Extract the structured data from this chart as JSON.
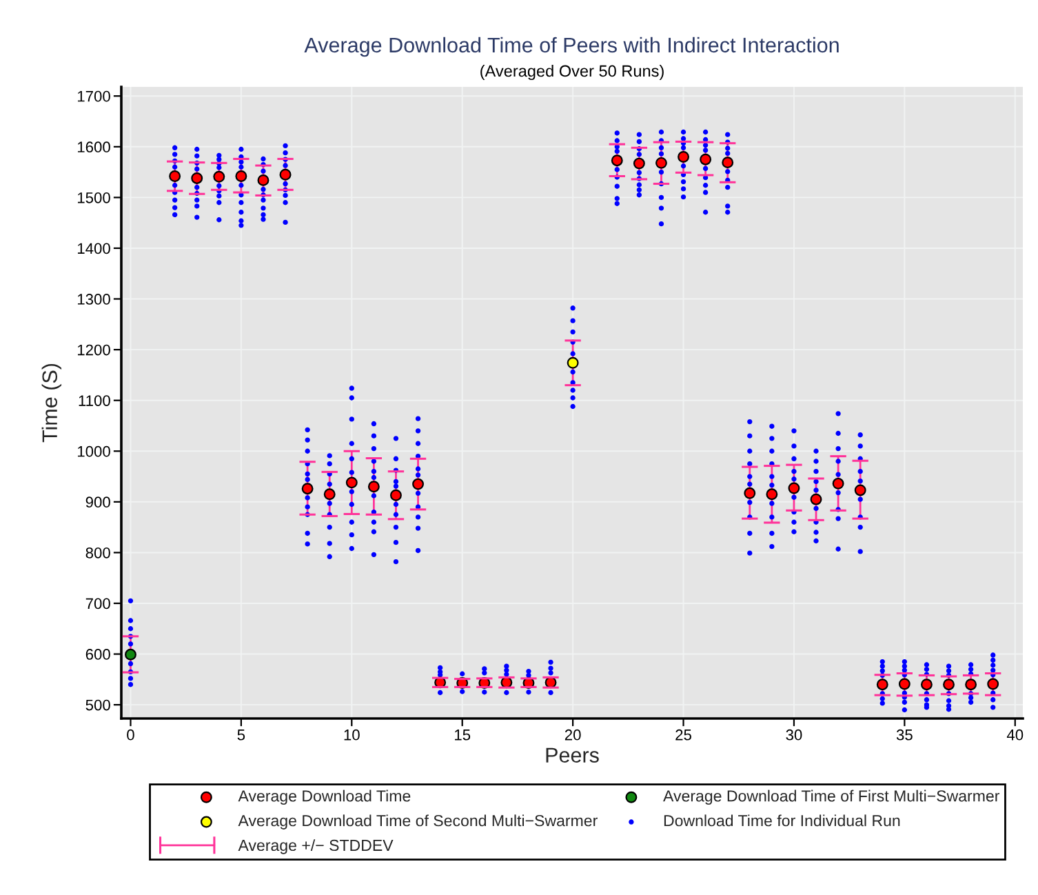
{
  "chart_data": {
    "type": "scatter",
    "title": "Average Download Time of Peers with Indirect Interaction",
    "subtitle": "(Averaged Over 50 Runs)",
    "xlabel": "Peers",
    "ylabel": "Time (S)",
    "xlim": [
      -0.42,
      40.35
    ],
    "ylim": [
      473,
      1718
    ],
    "xticks": [
      0,
      5,
      10,
      15,
      20,
      25,
      30,
      35,
      40
    ],
    "yticks": [
      500,
      600,
      700,
      800,
      900,
      1000,
      1100,
      1200,
      1300,
      1400,
      1500,
      1600,
      1700
    ],
    "grid": true,
    "legend": "bottom",
    "series": [
      {
        "name": "Average Download Time",
        "marker": "circle",
        "color": "#ff0000",
        "x": [
          2,
          3,
          4,
          5,
          6,
          7,
          8,
          9,
          10,
          11,
          12,
          13,
          14,
          15,
          16,
          17,
          18,
          19,
          22,
          23,
          24,
          25,
          26,
          27,
          28,
          29,
          30,
          31,
          32,
          33,
          34,
          35,
          36,
          37,
          38,
          39
        ],
        "values": [
          1542,
          1538,
          1541,
          1542,
          1534,
          1545,
          926,
          915,
          938,
          930,
          913,
          935,
          544,
          543,
          543,
          544,
          543,
          544,
          1573,
          1567,
          1568,
          1580,
          1575,
          1569,
          917,
          915,
          927,
          905,
          936,
          923,
          540,
          541,
          540,
          540,
          540,
          541
        ],
        "errors": [
          [
            1513,
            1571
          ],
          [
            1507,
            1569
          ],
          [
            1515,
            1568
          ],
          [
            1510,
            1576
          ],
          [
            1504,
            1563
          ],
          [
            1515,
            1576
          ],
          [
            875,
            979
          ],
          [
            872,
            959
          ],
          [
            876,
            1000
          ],
          [
            875,
            986
          ],
          [
            866,
            960
          ],
          [
            885,
            985
          ],
          [
            535,
            553
          ],
          [
            535,
            551
          ],
          [
            535,
            552
          ],
          [
            534,
            554
          ],
          [
            535,
            552
          ],
          [
            534,
            554
          ],
          [
            1542,
            1605
          ],
          [
            1536,
            1598
          ],
          [
            1527,
            1609
          ],
          [
            1549,
            1610
          ],
          [
            1544,
            1609
          ],
          [
            1530,
            1607
          ],
          [
            867,
            969
          ],
          [
            859,
            971
          ],
          [
            883,
            973
          ],
          [
            864,
            946
          ],
          [
            883,
            990
          ],
          [
            867,
            981
          ],
          [
            519,
            559
          ],
          [
            518,
            562
          ],
          [
            519,
            558
          ],
          [
            521,
            556
          ],
          [
            522,
            558
          ],
          [
            519,
            562
          ]
        ]
      },
      {
        "name": "Average Download Time of First Multi−Swarmer",
        "marker": "circle",
        "color": "#118811",
        "x": [
          0
        ],
        "values": [
          599
        ],
        "errors": [
          [
            564,
            635
          ]
        ]
      },
      {
        "name": "Average Download Time of Second Multi−Swarmer",
        "marker": "circle",
        "color": "#ffff00",
        "x": [
          20
        ],
        "values": [
          1174
        ],
        "errors": [
          [
            1130,
            1218
          ]
        ]
      },
      {
        "name": "Download Time for Individual Run",
        "marker": "circle",
        "color": "#0000ff",
        "x": [
          0,
          0,
          0,
          0,
          0,
          0,
          0,
          0,
          0,
          2,
          2,
          2,
          2,
          2,
          2,
          2,
          2,
          2,
          3,
          3,
          3,
          3,
          3,
          3,
          3,
          3,
          3,
          4,
          4,
          4,
          4,
          4,
          4,
          4,
          4,
          4,
          5,
          5,
          5,
          5,
          5,
          5,
          5,
          5,
          5,
          5,
          6,
          6,
          6,
          6,
          6,
          6,
          6,
          6,
          6,
          7,
          7,
          7,
          7,
          7,
          7,
          7,
          7,
          7,
          8,
          8,
          8,
          8,
          8,
          8,
          8,
          8,
          8,
          8,
          8,
          9,
          9,
          9,
          9,
          9,
          9,
          9,
          9,
          9,
          10,
          10,
          10,
          10,
          10,
          10,
          10,
          10,
          10,
          10,
          10,
          11,
          11,
          11,
          11,
          11,
          11,
          11,
          11,
          11,
          11,
          11,
          12,
          12,
          12,
          12,
          12,
          12,
          12,
          12,
          12,
          12,
          13,
          13,
          13,
          13,
          13,
          13,
          13,
          13,
          13,
          13,
          13,
          14,
          14,
          14,
          14,
          15,
          15,
          16,
          16,
          16,
          17,
          17,
          17,
          17,
          18,
          18,
          18,
          19,
          19,
          19,
          19,
          20,
          20,
          20,
          20,
          20,
          20,
          20,
          20,
          20,
          20,
          22,
          22,
          22,
          22,
          22,
          22,
          22,
          22,
          22,
          23,
          23,
          23,
          23,
          23,
          23,
          23,
          23,
          23,
          24,
          24,
          24,
          24,
          24,
          24,
          24,
          24,
          24,
          25,
          25,
          25,
          25,
          25,
          25,
          25,
          25,
          25,
          26,
          26,
          26,
          26,
          26,
          26,
          26,
          26,
          26,
          27,
          27,
          27,
          27,
          27,
          27,
          27,
          27,
          27,
          28,
          28,
          28,
          28,
          28,
          28,
          28,
          28,
          28,
          28,
          29,
          29,
          29,
          29,
          29,
          29,
          29,
          29,
          29,
          29,
          30,
          30,
          30,
          30,
          30,
          30,
          30,
          30,
          30,
          31,
          31,
          31,
          31,
          31,
          31,
          31,
          31,
          31,
          32,
          32,
          32,
          32,
          32,
          32,
          32,
          32,
          32,
          33,
          33,
          33,
          33,
          33,
          33,
          33,
          33,
          33,
          34,
          34,
          34,
          34,
          34,
          34,
          34,
          35,
          35,
          35,
          35,
          35,
          35,
          35,
          35,
          36,
          36,
          36,
          36,
          36,
          36,
          36,
          37,
          37,
          37,
          37,
          37,
          37,
          37,
          38,
          38,
          38,
          38,
          38,
          38,
          39,
          39,
          39,
          39,
          39,
          39,
          39,
          39
        ],
        "values": [
          705,
          666,
          650,
          635,
          620,
          581,
          565,
          552,
          540,
          1598,
          1585,
          1572,
          1560,
          1524,
          1510,
          1495,
          1480,
          1466,
          1595,
          1582,
          1568,
          1556,
          1520,
          1508,
          1495,
          1483,
          1461,
          1583,
          1575,
          1567,
          1559,
          1523,
          1513,
          1503,
          1490,
          1456,
          1595,
          1580,
          1570,
          1560,
          1524,
          1505,
          1490,
          1471,
          1454,
          1445,
          1576,
          1565,
          1552,
          1516,
          1505,
          1495,
          1479,
          1466,
          1457,
          1602,
          1588,
          1575,
          1563,
          1527,
          1515,
          1504,
          1490,
          1451,
          1042,
          1022,
          1000,
          975,
          955,
          944,
          908,
          890,
          875,
          838,
          817,
          991,
          975,
          955,
          935,
          897,
          875,
          850,
          818,
          792,
          1124,
          1105,
          1063,
          1015,
          985,
          958,
          920,
          895,
          860,
          835,
          808,
          1054,
          1030,
          1005,
          980,
          960,
          948,
          912,
          880,
          860,
          841,
          796,
          1025,
          985,
          962,
          940,
          931,
          895,
          875,
          850,
          820,
          782,
          1064,
          1040,
          1015,
          990,
          965,
          953,
          917,
          890,
          870,
          848,
          804,
          573,
          565,
          559,
          524,
          561,
          526,
          571,
          563,
          525,
          576,
          568,
          560,
          524,
          566,
          558,
          525,
          584,
          572,
          563,
          524,
          1282,
          1257,
          1235,
          1215,
          1192,
          1156,
          1135,
          1120,
          1105,
          1088,
          1627,
          1612,
          1600,
          1591,
          1555,
          1540,
          1522,
          1498,
          1488,
          1624,
          1610,
          1596,
          1585,
          1549,
          1537,
          1525,
          1515,
          1505,
          1629,
          1612,
          1598,
          1586,
          1550,
          1527,
          1500,
          1479,
          1448,
          1629,
          1616,
          1607,
          1598,
          1562,
          1545,
          1531,
          1517,
          1501,
          1629,
          1614,
          1603,
          1593,
          1557,
          1539,
          1524,
          1510,
          1471,
          1624,
          1609,
          1597,
          1587,
          1551,
          1534,
          1520,
          1483,
          1471,
          1058,
          1030,
          1000,
          975,
          950,
          935,
          899,
          870,
          838,
          799,
          1049,
          1025,
          1000,
          975,
          950,
          933,
          897,
          870,
          838,
          812,
          1040,
          1010,
          985,
          960,
          945,
          909,
          880,
          860,
          841,
          1000,
          980,
          960,
          940,
          923,
          887,
          860,
          840,
          823,
          1074,
          1035,
          1005,
          980,
          954,
          918,
          885,
          867,
          807,
          1032,
          1010,
          985,
          960,
          941,
          905,
          870,
          850,
          802,
          585,
          576,
          567,
          558,
          522,
          512,
          503,
          585,
          576,
          568,
          559,
          523,
          515,
          505,
          490,
          579,
          570,
          560,
          522,
          510,
          500,
          495,
          576,
          567,
          558,
          522,
          508,
          498,
          491,
          579,
          570,
          561,
          522,
          514,
          505,
          598,
          588,
          578,
          568,
          559,
          523,
          510,
          495
        ]
      },
      {
        "name": "Average +/− STDDEV",
        "marker": "none",
        "color": "#ff3399"
      }
    ]
  }
}
